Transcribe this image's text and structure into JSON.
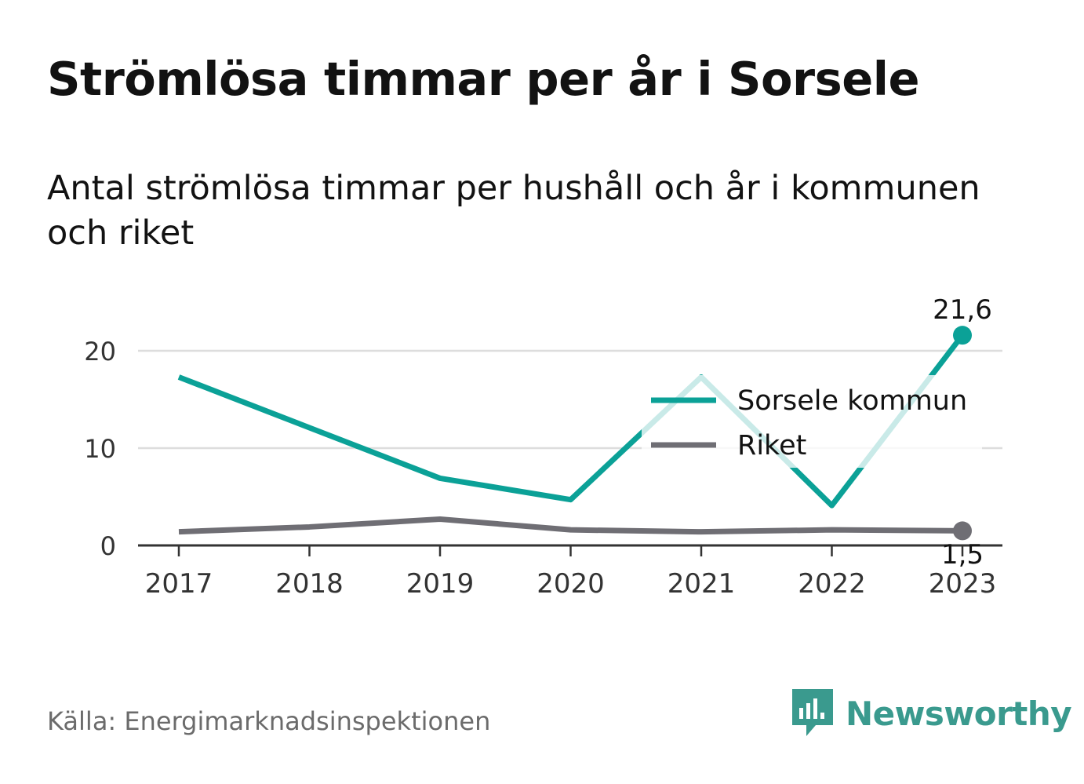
{
  "title": "Strömlösa timmar per år i Sorsele",
  "subtitle": "Antal strömlösa timmar per hushåll och år i kommunen och riket",
  "source": "Källa: Energimarknadsinspektionen",
  "brand": {
    "name": "Newsworthy",
    "icon": "newsworthy-logo-icon",
    "color": "#3a9a8e"
  },
  "chart_data": {
    "type": "line",
    "x": [
      "2017",
      "2018",
      "2019",
      "2020",
      "2021",
      "2022",
      "2023"
    ],
    "yticks": [
      "0",
      "10",
      "20"
    ],
    "ylim": [
      0,
      24
    ],
    "grid": true,
    "legend": "right",
    "series": [
      {
        "name": "Sorsele kommun",
        "color": "#0ba197",
        "values": [
          17.3,
          12.1,
          6.9,
          4.7,
          17.3,
          4.1,
          21.6
        ],
        "end_label": "21,6"
      },
      {
        "name": "Riket",
        "color": "#6f6e74",
        "values": [
          1.4,
          1.9,
          2.7,
          1.6,
          1.4,
          1.6,
          1.5
        ],
        "end_label": "1,5"
      }
    ]
  }
}
